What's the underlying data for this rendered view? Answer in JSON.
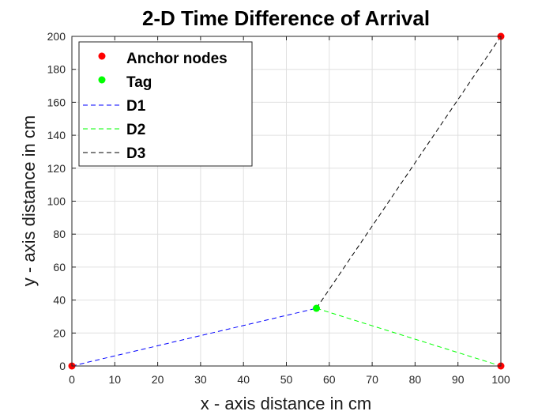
{
  "chart_data": {
    "type": "scatter",
    "title": "2-D Time Difference of Arrival",
    "xlabel": "x - axis distance in cm",
    "ylabel": "y - axis distance in cm",
    "xlim": [
      0,
      100
    ],
    "ylim": [
      0,
      200
    ],
    "xticks": [
      0,
      10,
      20,
      30,
      40,
      50,
      60,
      70,
      80,
      90,
      100
    ],
    "yticks": [
      0,
      20,
      40,
      60,
      80,
      100,
      120,
      140,
      160,
      180,
      200
    ],
    "grid": true,
    "legend_position": "top-left",
    "series": [
      {
        "name": "Anchor nodes",
        "kind": "points",
        "color": "#ff0000",
        "points": [
          [
            0,
            0
          ],
          [
            100,
            0
          ],
          [
            100,
            200
          ]
        ]
      },
      {
        "name": "Tag",
        "kind": "points",
        "color": "#00ff00",
        "points": [
          [
            57,
            35
          ]
        ]
      },
      {
        "name": "D1",
        "kind": "dashed-line",
        "color": "#0000ff",
        "points": [
          [
            0,
            0
          ],
          [
            57,
            35
          ]
        ]
      },
      {
        "name": "D2",
        "kind": "dashed-line",
        "color": "#00ff00",
        "points": [
          [
            57,
            35
          ],
          [
            100,
            0
          ]
        ]
      },
      {
        "name": "D3",
        "kind": "dashed-line",
        "color": "#000000",
        "points": [
          [
            57,
            35
          ],
          [
            100,
            200
          ]
        ]
      }
    ]
  }
}
